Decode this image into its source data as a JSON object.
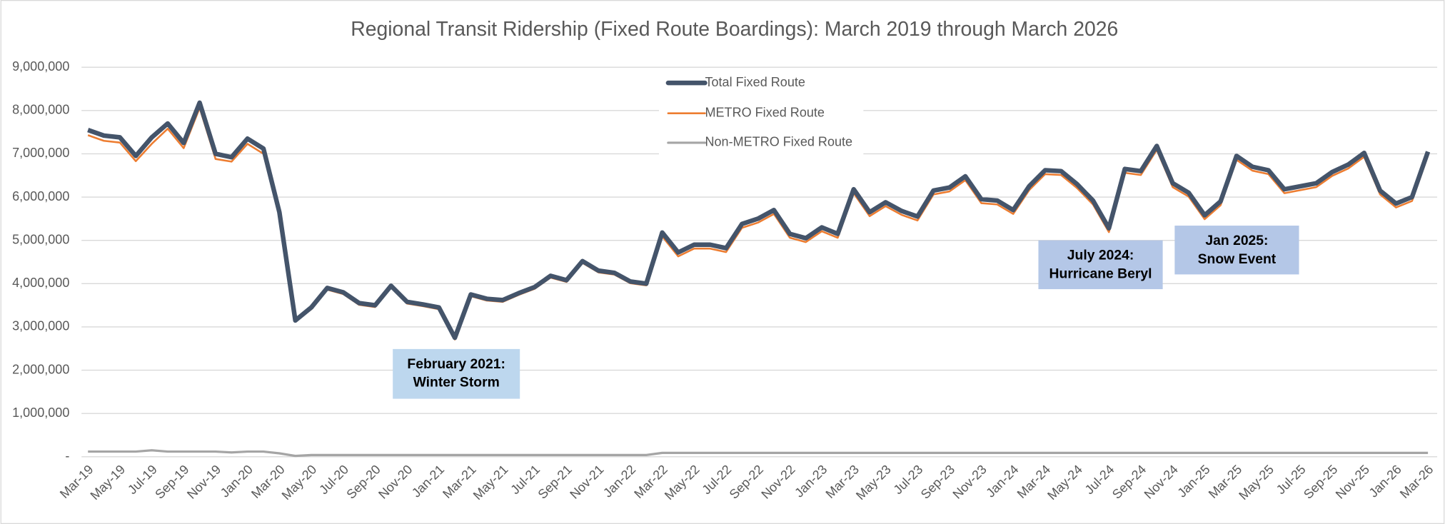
{
  "chart_data": {
    "type": "line",
    "title": "Regional Transit Ridership (Fixed Route Boardings): March 2019 through March 2026",
    "categories": [
      "Mar-19",
      null,
      "May-19",
      null,
      "Jul-19",
      null,
      "Sep-19",
      null,
      "Nov-19",
      null,
      "Jan-20",
      null,
      "Mar-20",
      null,
      "May-20",
      null,
      "Jul-20",
      null,
      "Sep-20",
      null,
      "Nov-20",
      null,
      "Jan-21",
      null,
      "Mar-21",
      null,
      "May-21",
      null,
      "Jul-21",
      null,
      "Sep-21",
      null,
      "Nov-21",
      null,
      "Jan-22",
      null,
      "Mar-22",
      null,
      "May-22",
      null,
      "Jul-22",
      null,
      "Sep-22",
      null,
      "Nov-22",
      null,
      "Jan-23",
      null,
      "Mar-23",
      null,
      "May-23",
      null,
      "Jul-23",
      null,
      "Sep-23",
      null,
      "Nov-23",
      null,
      "Jan-24",
      null,
      "Mar-24",
      null,
      "May-24",
      null,
      "Jul-24",
      null,
      "Sep-24",
      null,
      "Nov-24",
      null,
      "Jan-25",
      null,
      "Mar-25",
      null,
      "May-25",
      null,
      "Jul-25",
      null,
      "Sep-25",
      null,
      "Nov-25",
      null,
      "Jan-26",
      null,
      "Mar-26"
    ],
    "series": [
      {
        "name": "Total Fixed Route",
        "color": "#44546a",
        "values": [
          7550000,
          7420000,
          7380000,
          6950000,
          7380000,
          7700000,
          7250000,
          8180000,
          7000000,
          6920000,
          7350000,
          7120000,
          5650000,
          3150000,
          3450000,
          3900000,
          3800000,
          3550000,
          3500000,
          3950000,
          3580000,
          3520000,
          3450000,
          2750000,
          3750000,
          3650000,
          3620000,
          3780000,
          3920000,
          4180000,
          4080000,
          4520000,
          4300000,
          4250000,
          4050000,
          4000000,
          5180000,
          4720000,
          4900000,
          4900000,
          4820000,
          5380000,
          5500000,
          5700000,
          5150000,
          5050000,
          5300000,
          5150000,
          6180000,
          5650000,
          5880000,
          5680000,
          5550000,
          6150000,
          6220000,
          6480000,
          5950000,
          5920000,
          5700000,
          6250000,
          6620000,
          6600000,
          6300000,
          5920000,
          5280000,
          6650000,
          6600000,
          7180000,
          6320000,
          6100000,
          5580000,
          5900000,
          6950000,
          6700000,
          6620000,
          6180000,
          6250000,
          6320000,
          6580000,
          6750000,
          7020000,
          6150000,
          5850000,
          6000000,
          7050000
        ]
      },
      {
        "name": "METRO Fixed Route",
        "color": "#ed7d31",
        "values": [
          7430000,
          7300000,
          7260000,
          6830000,
          7230000,
          7580000,
          7130000,
          8060000,
          6880000,
          6820000,
          7230000,
          7000000,
          5570000,
          3130000,
          3410000,
          3860000,
          3760000,
          3510000,
          3460000,
          3910000,
          3540000,
          3480000,
          3410000,
          2710000,
          3710000,
          3610000,
          3580000,
          3740000,
          3880000,
          4140000,
          4040000,
          4480000,
          4260000,
          4210000,
          4010000,
          3960000,
          5090000,
          4630000,
          4810000,
          4810000,
          4730000,
          5290000,
          5410000,
          5610000,
          5060000,
          4960000,
          5210000,
          5060000,
          6090000,
          5560000,
          5790000,
          5590000,
          5460000,
          6060000,
          6130000,
          6390000,
          5860000,
          5830000,
          5610000,
          6160000,
          6530000,
          6510000,
          6210000,
          5830000,
          5190000,
          6560000,
          6510000,
          7090000,
          6230000,
          6010000,
          5490000,
          5810000,
          6860000,
          6610000,
          6530000,
          6090000,
          6160000,
          6230000,
          6490000,
          6660000,
          6930000,
          6060000,
          5760000,
          5910000,
          6960000
        ]
      },
      {
        "name": "Non-METRO Fixed Route",
        "color": "#a5a5a5",
        "values": [
          120000,
          120000,
          120000,
          120000,
          150000,
          120000,
          120000,
          120000,
          120000,
          100000,
          120000,
          120000,
          80000,
          20000,
          40000,
          40000,
          40000,
          40000,
          40000,
          40000,
          40000,
          40000,
          40000,
          40000,
          40000,
          40000,
          40000,
          40000,
          40000,
          40000,
          40000,
          40000,
          40000,
          40000,
          40000,
          40000,
          90000,
          90000,
          90000,
          90000,
          90000,
          90000,
          90000,
          90000,
          90000,
          90000,
          90000,
          90000,
          90000,
          90000,
          90000,
          90000,
          90000,
          90000,
          90000,
          90000,
          90000,
          90000,
          90000,
          90000,
          90000,
          90000,
          90000,
          90000,
          90000,
          90000,
          90000,
          90000,
          90000,
          90000,
          90000,
          90000,
          90000,
          90000,
          90000,
          90000,
          90000,
          90000,
          90000,
          90000,
          90000,
          90000,
          90000,
          90000,
          90000
        ]
      }
    ],
    "ylim": [
      0,
      9000000
    ],
    "yticks": [
      {
        "value": 0,
        "label": "-"
      },
      {
        "value": 1000000,
        "label": "1,000,000"
      },
      {
        "value": 2000000,
        "label": "2,000,000"
      },
      {
        "value": 3000000,
        "label": "3,000,000"
      },
      {
        "value": 4000000,
        "label": "4,000,000"
      },
      {
        "value": 5000000,
        "label": "5,000,000"
      },
      {
        "value": 6000000,
        "label": "6,000,000"
      },
      {
        "value": 7000000,
        "label": "7,000,000"
      },
      {
        "value": 8000000,
        "label": "8,000,000"
      },
      {
        "value": 9000000,
        "label": "9,000,000"
      }
    ],
    "grid": true,
    "legend": "top",
    "annotations": [
      {
        "lines": [
          "February 2021:",
          "Winter Storm"
        ]
      },
      {
        "lines": [
          "July 2024:",
          "Hurricane Beryl"
        ]
      },
      {
        "lines": [
          "Jan 2025:",
          "Snow Event"
        ]
      }
    ]
  }
}
